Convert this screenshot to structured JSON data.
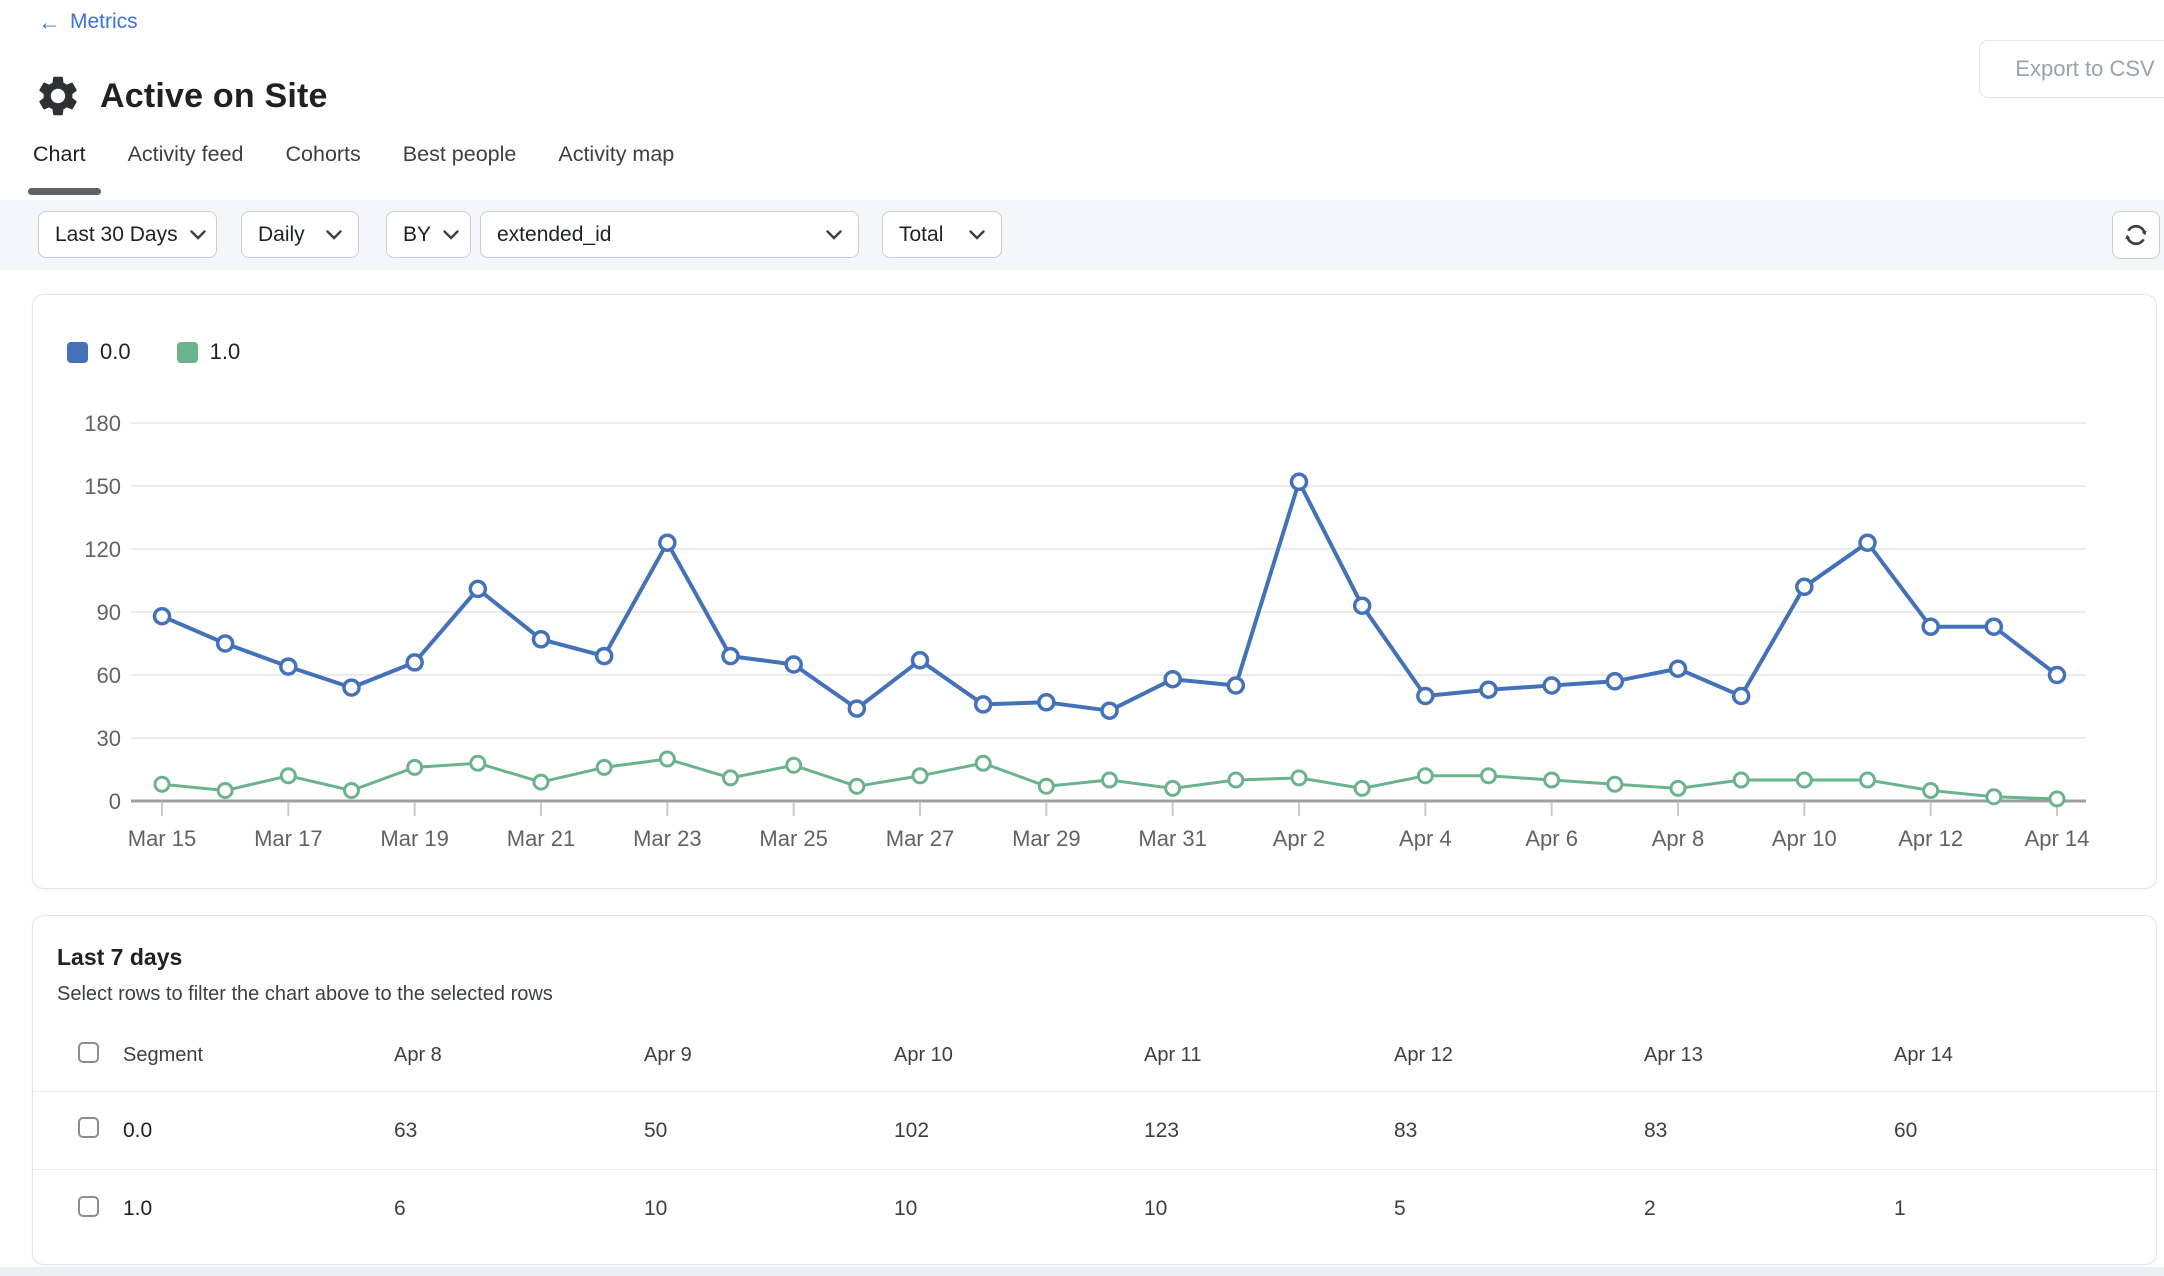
{
  "header": {
    "back_arrow": "←",
    "back_label": "Metrics",
    "title": "Active on Site",
    "export_label": "Export to CSV"
  },
  "tabs": [
    "Chart",
    "Activity feed",
    "Cohorts",
    "Best people",
    "Activity map"
  ],
  "active_tab": "Chart",
  "filters": {
    "date_range": "Last 30 Days",
    "interval": "Daily",
    "by": "BY",
    "property": "extended_id",
    "aggregation": "Total"
  },
  "chart_data": {
    "type": "line",
    "title": "",
    "x": [
      "Mar 15",
      "Mar 16",
      "Mar 17",
      "Mar 18",
      "Mar 19",
      "Mar 20",
      "Mar 21",
      "Mar 22",
      "Mar 23",
      "Mar 24",
      "Mar 25",
      "Mar 26",
      "Mar 27",
      "Mar 28",
      "Mar 29",
      "Mar 30",
      "Mar 31",
      "Apr 1",
      "Apr 2",
      "Apr 3",
      "Apr 4",
      "Apr 5",
      "Apr 6",
      "Apr 7",
      "Apr 8",
      "Apr 9",
      "Apr 10",
      "Apr 11",
      "Apr 12",
      "Apr 13",
      "Apr 14"
    ],
    "x_tick_every": 2,
    "yticks": [
      0,
      30,
      60,
      90,
      120,
      150,
      180
    ],
    "ylim": [
      0,
      180
    ],
    "grid": true,
    "legend_position": "top-left",
    "series": [
      {
        "name": "0.0",
        "color": "#4472b9",
        "values": [
          88,
          75,
          64,
          54,
          66,
          101,
          77,
          69,
          123,
          69,
          65,
          44,
          67,
          46,
          47,
          43,
          58,
          55,
          152,
          93,
          50,
          53,
          55,
          57,
          63,
          50,
          102,
          123,
          83,
          83,
          60
        ]
      },
      {
        "name": "1.0",
        "color": "#6ab38c",
        "values": [
          8,
          5,
          12,
          5,
          16,
          18,
          9,
          16,
          20,
          11,
          17,
          7,
          12,
          18,
          7,
          10,
          6,
          10,
          11,
          6,
          12,
          12,
          10,
          8,
          6,
          10,
          10,
          10,
          5,
          2,
          1
        ]
      }
    ]
  },
  "table": {
    "title": "Last 7 days",
    "subtitle": "Select rows to filter the chart above to the selected rows",
    "segment_header": "Segment",
    "date_columns": [
      "Apr 8",
      "Apr 9",
      "Apr 10",
      "Apr 11",
      "Apr 12",
      "Apr 13",
      "Apr 14"
    ],
    "rows": [
      {
        "segment": "0.0",
        "values": [
          "63",
          "50",
          "102",
          "123",
          "83",
          "83",
          "60"
        ]
      },
      {
        "segment": "1.0",
        "values": [
          "6",
          "10",
          "10",
          "10",
          "5",
          "2",
          "1"
        ]
      }
    ]
  },
  "colors": {
    "accent_blue": "#4472b9",
    "accent_green": "#6ab38c",
    "link_blue": "#3d74d6"
  }
}
